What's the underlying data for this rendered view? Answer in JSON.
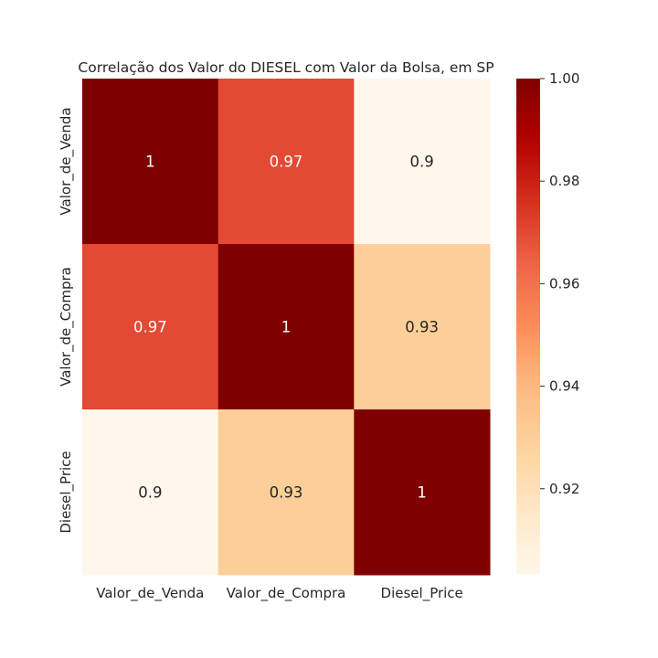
{
  "chart_data": {
    "type": "heatmap",
    "title": "Correlação dos Valor do DIESEL com Valor da Bolsa, em SP",
    "x_categories": [
      "Valor_de_Venda",
      "Valor_de_Compra",
      "Diesel_Price"
    ],
    "y_categories": [
      "Valor_de_Venda",
      "Valor_de_Compra",
      "Diesel_Price"
    ],
    "values": [
      [
        1.0,
        0.97,
        0.9
      ],
      [
        0.97,
        1.0,
        0.93
      ],
      [
        0.9,
        0.93,
        1.0
      ]
    ],
    "cell_labels": [
      [
        "1",
        "0.97",
        "0.9"
      ],
      [
        "0.97",
        "1",
        "0.93"
      ],
      [
        "0.9",
        "0.93",
        "1"
      ]
    ],
    "colormap": "OrRd",
    "color_range": [
      0.9032,
      1.0
    ],
    "colorbar_ticks": [
      "0.92",
      "0.94",
      "0.96",
      "0.98",
      "1.00"
    ],
    "colorbar_tick_values": [
      0.92,
      0.94,
      0.96,
      0.98,
      1.0
    ],
    "colors": {
      "low": "#fff7ec",
      "high": "#7f0000",
      "text_dark": "#262626",
      "text_light": "#ffffff"
    }
  }
}
